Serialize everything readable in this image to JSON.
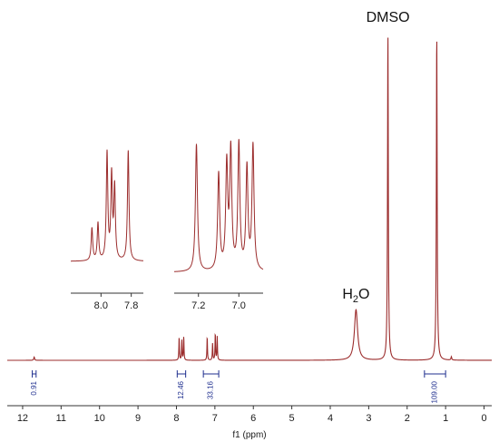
{
  "chart_data": {
    "type": "line",
    "title": "",
    "xlabel": "f1 (ppm)",
    "ylabel": "",
    "xlim": [
      12.4,
      -0.2
    ],
    "x_reversed": true,
    "x_ticks": [
      12,
      11,
      10,
      9,
      8,
      7,
      6,
      5,
      4,
      3,
      2,
      1,
      0
    ],
    "grid": false,
    "line_color": "#9b2c2c",
    "integral_color": "#1f2f8f",
    "peaks": [
      {
        "ppm": 11.7,
        "height": 0.01
      },
      {
        "ppm": 7.93,
        "height": 0.07
      },
      {
        "ppm": 7.86,
        "height": 0.06
      },
      {
        "ppm": 7.81,
        "height": 0.07
      },
      {
        "ppm": 7.2,
        "height": 0.07
      },
      {
        "ppm": 7.06,
        "height": 0.05
      },
      {
        "ppm": 6.99,
        "height": 0.08
      },
      {
        "ppm": 6.94,
        "height": 0.07
      },
      {
        "ppm": 3.33,
        "height": 0.15
      },
      {
        "ppm": 2.5,
        "height": 0.97
      },
      {
        "ppm": 1.23,
        "height": 0.97
      },
      {
        "ppm": 0.85,
        "height": 0.01
      }
    ],
    "annotations": [
      {
        "text_main": "H",
        "text_sub": "2",
        "text_tail": "O",
        "ppm": 3.33
      },
      {
        "text_main": "DMSO",
        "ppm": 2.5
      }
    ],
    "integrals": [
      {
        "from": 11.75,
        "to": 11.65,
        "value": "0.91"
      },
      {
        "from": 7.98,
        "to": 7.76,
        "value": "12.46"
      },
      {
        "from": 7.3,
        "to": 6.9,
        "value": "33.16"
      },
      {
        "from": 1.55,
        "to": 1.0,
        "value": "109.00"
      }
    ],
    "insets": [
      {
        "xlim": [
          8.2,
          7.72
        ],
        "x_ticks": [
          8.0,
          7.8
        ],
        "peaks": [
          {
            "ppm": 8.06,
            "height": 0.28
          },
          {
            "ppm": 8.02,
            "height": 0.32
          },
          {
            "ppm": 7.96,
            "height": 0.92
          },
          {
            "ppm": 7.93,
            "height": 0.72
          },
          {
            "ppm": 7.91,
            "height": 0.62
          },
          {
            "ppm": 7.82,
            "height": 0.95
          }
        ]
      },
      {
        "xlim": [
          7.32,
          6.88
        ],
        "x_ticks": [
          7.2,
          7.0
        ],
        "peaks": [
          {
            "ppm": 7.21,
            "height": 0.95
          },
          {
            "ppm": 7.1,
            "height": 0.72
          },
          {
            "ppm": 7.06,
            "height": 0.78
          },
          {
            "ppm": 7.04,
            "height": 0.88
          },
          {
            "ppm": 7.0,
            "height": 0.94
          },
          {
            "ppm": 6.96,
            "height": 0.76
          },
          {
            "ppm": 6.93,
            "height": 0.93
          }
        ]
      }
    ]
  }
}
